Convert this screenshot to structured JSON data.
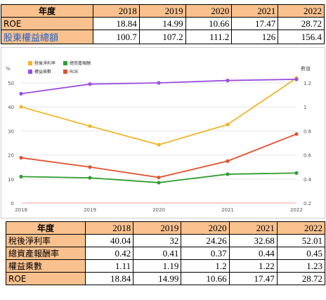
{
  "top_table": {
    "header": [
      "年度",
      "2018",
      "2019",
      "2020",
      "2021",
      "2022"
    ],
    "rows": [
      {
        "label": "ROE",
        "values": [
          "18.84",
          "14.99",
          "10.66",
          "17.47",
          "28.72"
        ]
      },
      {
        "label": "股東權益總額",
        "values": [
          "100.7",
          "107.2",
          "111.2",
          "126",
          "156.4"
        ]
      }
    ]
  },
  "bottom_table": {
    "header": [
      "年度",
      "2018",
      "2019",
      "2020",
      "2021",
      "2022"
    ],
    "rows": [
      {
        "label": "稅後淨利率",
        "values": [
          "40.04",
          "32",
          "24.26",
          "32.68",
          "52.01"
        ]
      },
      {
        "label": "總資產報酬率",
        "values": [
          "0.42",
          "0.41",
          "0.37",
          "0.44",
          "0.45"
        ]
      },
      {
        "label": "權益乘數",
        "values": [
          "1.11",
          "1.19",
          "1.2",
          "1.22",
          "1.23"
        ]
      },
      {
        "label": "ROE",
        "values": [
          "18.84",
          "14.99",
          "10.66",
          "17.47",
          "28.72"
        ]
      }
    ]
  },
  "chart_data": {
    "type": "line",
    "x": [
      "2018",
      "2019",
      "2020",
      "2021",
      "2022"
    ],
    "left_axis_label": "%",
    "right_axis_label": "數值",
    "left_ylim": [
      0,
      50
    ],
    "left_ticks": [
      "0",
      "10",
      "20",
      "30",
      "40",
      "50"
    ],
    "right_ylim": [
      0.2,
      1.2
    ],
    "right_ticks": [
      "0.2",
      "0.4",
      "0.6",
      "0.8",
      "1",
      "1.2"
    ],
    "grid": true,
    "legend_position": "top-left",
    "series": [
      {
        "name": "稅後淨利率",
        "axis": "left",
        "color": "#f0b429",
        "values": [
          40.04,
          32,
          24.26,
          32.68,
          52.01
        ]
      },
      {
        "name": "總資產報酬",
        "axis": "right",
        "color": "#2e9e2e",
        "values": [
          0.42,
          0.41,
          0.37,
          0.44,
          0.45
        ]
      },
      {
        "name": "權益乘數",
        "axis": "right",
        "color": "#9b4de0",
        "values": [
          1.11,
          1.19,
          1.2,
          1.22,
          1.23
        ]
      },
      {
        "name": "ROE",
        "axis": "left",
        "color": "#e0532f",
        "values": [
          18.84,
          14.99,
          10.66,
          17.47,
          28.72
        ]
      }
    ]
  }
}
